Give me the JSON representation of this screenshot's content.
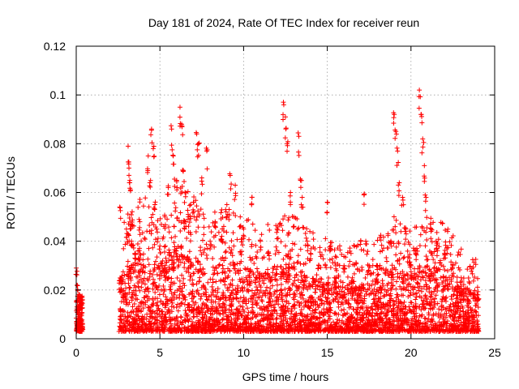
{
  "chart_data": {
    "type": "scatter",
    "title": "Day 181 of 2024, Rate Of TEC Index for receiver reun",
    "xlabel": "GPS time / hours",
    "ylabel": "ROTI / TECUs",
    "xlim": [
      0,
      25
    ],
    "ylim": [
      0,
      0.12
    ],
    "x_ticks": [
      0,
      5,
      10,
      15,
      20,
      25
    ],
    "x_tick_labels": [
      "0",
      "5",
      "10",
      "15",
      "20",
      "25"
    ],
    "y_ticks": [
      0,
      0.02,
      0.04,
      0.06,
      0.08,
      0.1,
      0.12
    ],
    "y_tick_labels": [
      "0",
      "0.02",
      "0.04",
      "0.06",
      "0.08",
      "0.1",
      "0.12"
    ],
    "grid": true,
    "marker": "+",
    "series": [
      {
        "name": "ROTI",
        "color": "#ff0000",
        "points": [
          [
            0.0,
            0.029
          ],
          [
            0.05,
            0.022
          ],
          [
            0.1,
            0.012
          ],
          [
            0.15,
            0.008
          ],
          [
            0.2,
            0.018
          ],
          [
            0.25,
            0.006
          ],
          [
            0.3,
            0.015
          ],
          [
            0.35,
            0.004
          ],
          [
            2.6,
            0.054
          ],
          [
            2.7,
            0.025
          ],
          [
            2.8,
            0.018
          ],
          [
            3.0,
            0.045
          ],
          [
            3.1,
            0.079
          ],
          [
            3.15,
            0.07
          ],
          [
            3.2,
            0.064
          ],
          [
            3.3,
            0.04
          ],
          [
            3.5,
            0.035
          ],
          [
            3.8,
            0.048
          ],
          [
            4.0,
            0.03
          ],
          [
            4.3,
            0.075
          ],
          [
            4.4,
            0.064
          ],
          [
            4.5,
            0.086
          ],
          [
            4.6,
            0.078
          ],
          [
            4.7,
            0.055
          ],
          [
            4.8,
            0.045
          ],
          [
            5.0,
            0.038
          ],
          [
            5.3,
            0.05
          ],
          [
            5.5,
            0.062
          ],
          [
            5.7,
            0.086
          ],
          [
            5.8,
            0.075
          ],
          [
            6.0,
            0.065
          ],
          [
            6.2,
            0.095
          ],
          [
            6.3,
            0.088
          ],
          [
            6.4,
            0.069
          ],
          [
            6.5,
            0.06
          ],
          [
            6.7,
            0.05
          ],
          [
            7.0,
            0.056
          ],
          [
            7.2,
            0.084
          ],
          [
            7.3,
            0.08
          ],
          [
            7.5,
            0.066
          ],
          [
            7.8,
            0.077
          ],
          [
            8.0,
            0.04
          ],
          [
            8.3,
            0.048
          ],
          [
            8.7,
            0.042
          ],
          [
            9.0,
            0.055
          ],
          [
            9.2,
            0.067
          ],
          [
            9.5,
            0.063
          ],
          [
            9.8,
            0.05
          ],
          [
            10.0,
            0.045
          ],
          [
            10.5,
            0.058
          ],
          [
            11.0,
            0.04
          ],
          [
            11.5,
            0.035
          ],
          [
            12.0,
            0.045
          ],
          [
            12.4,
            0.096
          ],
          [
            12.5,
            0.091
          ],
          [
            12.6,
            0.08
          ],
          [
            12.8,
            0.06
          ],
          [
            13.0,
            0.05
          ],
          [
            13.3,
            0.083
          ],
          [
            13.4,
            0.065
          ],
          [
            13.5,
            0.058
          ],
          [
            13.8,
            0.04
          ],
          [
            14.0,
            0.035
          ],
          [
            14.5,
            0.03
          ],
          [
            15.0,
            0.056
          ],
          [
            15.2,
            0.038
          ],
          [
            15.5,
            0.025
          ],
          [
            16.0,
            0.03
          ],
          [
            16.5,
            0.025
          ],
          [
            17.0,
            0.04
          ],
          [
            17.2,
            0.059
          ],
          [
            17.5,
            0.03
          ],
          [
            18.0,
            0.03
          ],
          [
            18.5,
            0.028
          ],
          [
            18.8,
            0.04
          ],
          [
            19.0,
            0.092
          ],
          [
            19.1,
            0.085
          ],
          [
            19.2,
            0.077
          ],
          [
            19.3,
            0.064
          ],
          [
            19.5,
            0.058
          ],
          [
            19.7,
            0.045
          ],
          [
            20.0,
            0.03
          ],
          [
            20.3,
            0.035
          ],
          [
            20.5,
            0.102
          ],
          [
            20.6,
            0.092
          ],
          [
            20.7,
            0.082
          ],
          [
            20.8,
            0.071
          ],
          [
            20.9,
            0.058
          ],
          [
            21.2,
            0.045
          ],
          [
            21.5,
            0.04
          ],
          [
            22.0,
            0.035
          ],
          [
            22.5,
            0.03
          ],
          [
            23.0,
            0.025
          ],
          [
            23.5,
            0.02
          ],
          [
            24.0,
            0.018
          ]
        ],
        "envelope": [
          [
            2.6,
            0.026
          ],
          [
            3.0,
            0.03
          ],
          [
            4.0,
            0.035
          ],
          [
            5.0,
            0.03
          ],
          [
            6.0,
            0.04
          ],
          [
            7.0,
            0.035
          ],
          [
            8.0,
            0.03
          ],
          [
            9.0,
            0.032
          ],
          [
            10.0,
            0.03
          ],
          [
            11.0,
            0.026
          ],
          [
            12.0,
            0.03
          ],
          [
            13.0,
            0.03
          ],
          [
            14.0,
            0.026
          ],
          [
            15.0,
            0.024
          ],
          [
            16.0,
            0.022
          ],
          [
            17.0,
            0.024
          ],
          [
            18.0,
            0.024
          ],
          [
            19.0,
            0.03
          ],
          [
            20.0,
            0.026
          ],
          [
            21.0,
            0.03
          ],
          [
            22.0,
            0.028
          ],
          [
            23.0,
            0.022
          ],
          [
            24.0,
            0.02
          ]
        ]
      }
    ]
  }
}
